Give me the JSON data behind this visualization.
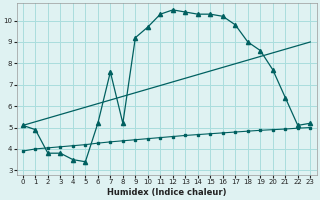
{
  "xlabel": "Humidex (Indice chaleur)",
  "bg_color": "#dff2f2",
  "line_color": "#006060",
  "grid_color": "#aadddd",
  "xlim": [
    -0.5,
    23.5
  ],
  "ylim": [
    2.8,
    10.8
  ],
  "yticks": [
    3,
    4,
    5,
    6,
    7,
    8,
    9,
    10
  ],
  "xticks": [
    0,
    1,
    2,
    3,
    4,
    5,
    6,
    7,
    8,
    9,
    10,
    11,
    12,
    13,
    14,
    15,
    16,
    17,
    18,
    19,
    20,
    21,
    22,
    23
  ],
  "curve1_x": [
    0,
    1,
    2,
    3,
    4,
    5,
    6,
    7,
    8,
    9,
    10,
    11,
    12,
    13,
    14,
    15,
    16,
    17,
    18,
    19,
    20,
    21,
    22,
    23
  ],
  "curve1_y": [
    5.1,
    4.9,
    3.8,
    3.8,
    3.5,
    3.4,
    5.2,
    7.6,
    5.2,
    9.2,
    9.7,
    10.3,
    10.5,
    10.4,
    10.3,
    10.3,
    10.2,
    9.8,
    9.0,
    8.6,
    7.7,
    6.4,
    5.1,
    5.2
  ],
  "curve2_x": [
    0,
    23
  ],
  "curve2_y": [
    5.1,
    9.0
  ],
  "curve3_x": [
    0,
    1,
    2,
    3,
    4,
    5,
    6,
    7,
    8,
    9,
    10,
    11,
    12,
    13,
    14,
    15,
    16,
    17,
    18,
    19,
    20,
    21,
    22,
    23
  ],
  "curve3_y": [
    3.9,
    4.0,
    4.05,
    4.1,
    4.15,
    4.2,
    4.27,
    4.33,
    4.38,
    4.43,
    4.48,
    4.53,
    4.58,
    4.63,
    4.67,
    4.71,
    4.75,
    4.79,
    4.83,
    4.87,
    4.9,
    4.93,
    4.97,
    5.0
  ]
}
